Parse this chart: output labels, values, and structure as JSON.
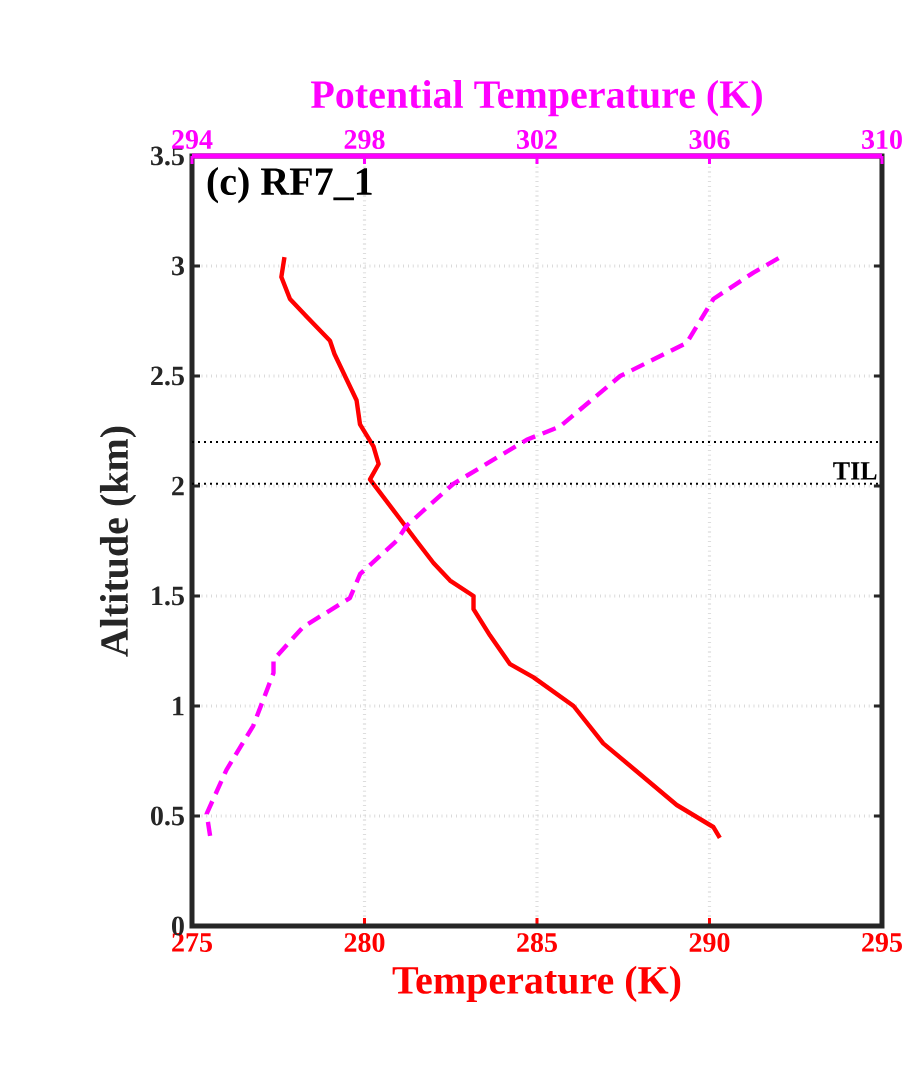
{
  "chart_data": {
    "type": "line",
    "title": "(c) RF7_1",
    "xlabel": "Temperature (K)",
    "ylabel": "Altitude (km)",
    "x2label": "Potential Temperature (K)",
    "xlim": [
      275,
      295
    ],
    "xticks": [
      275,
      280,
      285,
      290,
      295
    ],
    "x2lim": [
      294,
      310
    ],
    "x2ticks": [
      294,
      298,
      302,
      306,
      310
    ],
    "ylim": [
      0,
      3.5
    ],
    "yticks": [
      0,
      0.5,
      1,
      1.5,
      2,
      2.5,
      3,
      3.5
    ],
    "grid": true,
    "marker": "none",
    "series": [
      {
        "color": "#ff0000",
        "line_style": "solid",
        "x": [
          277.68,
          277.59,
          277.84,
          278.32,
          279.0,
          279.13,
          279.77,
          279.87,
          280.26,
          280.41,
          280.16,
          281.03,
          281.51,
          282.0,
          282.48,
          283.16,
          283.16,
          283.64,
          284.22,
          284.9,
          286.06,
          286.92,
          287.99,
          289.05,
          290.11,
          290.3
        ],
        "values": [
          3.04,
          2.95,
          2.85,
          2.77,
          2.66,
          2.6,
          2.39,
          2.28,
          2.18,
          2.1,
          2.03,
          1.85,
          1.75,
          1.65,
          1.57,
          1.5,
          1.44,
          1.32,
          1.19,
          1.13,
          1.0,
          0.83,
          0.69,
          0.55,
          0.45,
          0.4
        ]
      },
      {
        "color": "#ff00ff",
        "line_style": "dashed",
        "axis": "x2",
        "x": [
          294.42,
          294.34,
          294.8,
          295.42,
          295.89,
          295.89,
          296.58,
          297.66,
          297.9,
          298.74,
          298.98,
          300.06,
          301.76,
          302.53,
          303.93,
          305.47,
          306.09,
          307.02,
          307.64
        ],
        "values": [
          0.41,
          0.51,
          0.71,
          0.91,
          1.15,
          1.21,
          1.36,
          1.49,
          1.6,
          1.75,
          1.82,
          2.01,
          2.21,
          2.27,
          2.5,
          2.65,
          2.85,
          2.97,
          3.04
        ]
      }
    ],
    "ref_lines": [
      {
        "axis": "y",
        "value": 2.2,
        "color": "#000000",
        "line_style": "dotted"
      },
      {
        "axis": "y",
        "value": 2.01,
        "label": "TIL",
        "color": "#000000",
        "line_style": "dotted"
      }
    ]
  }
}
